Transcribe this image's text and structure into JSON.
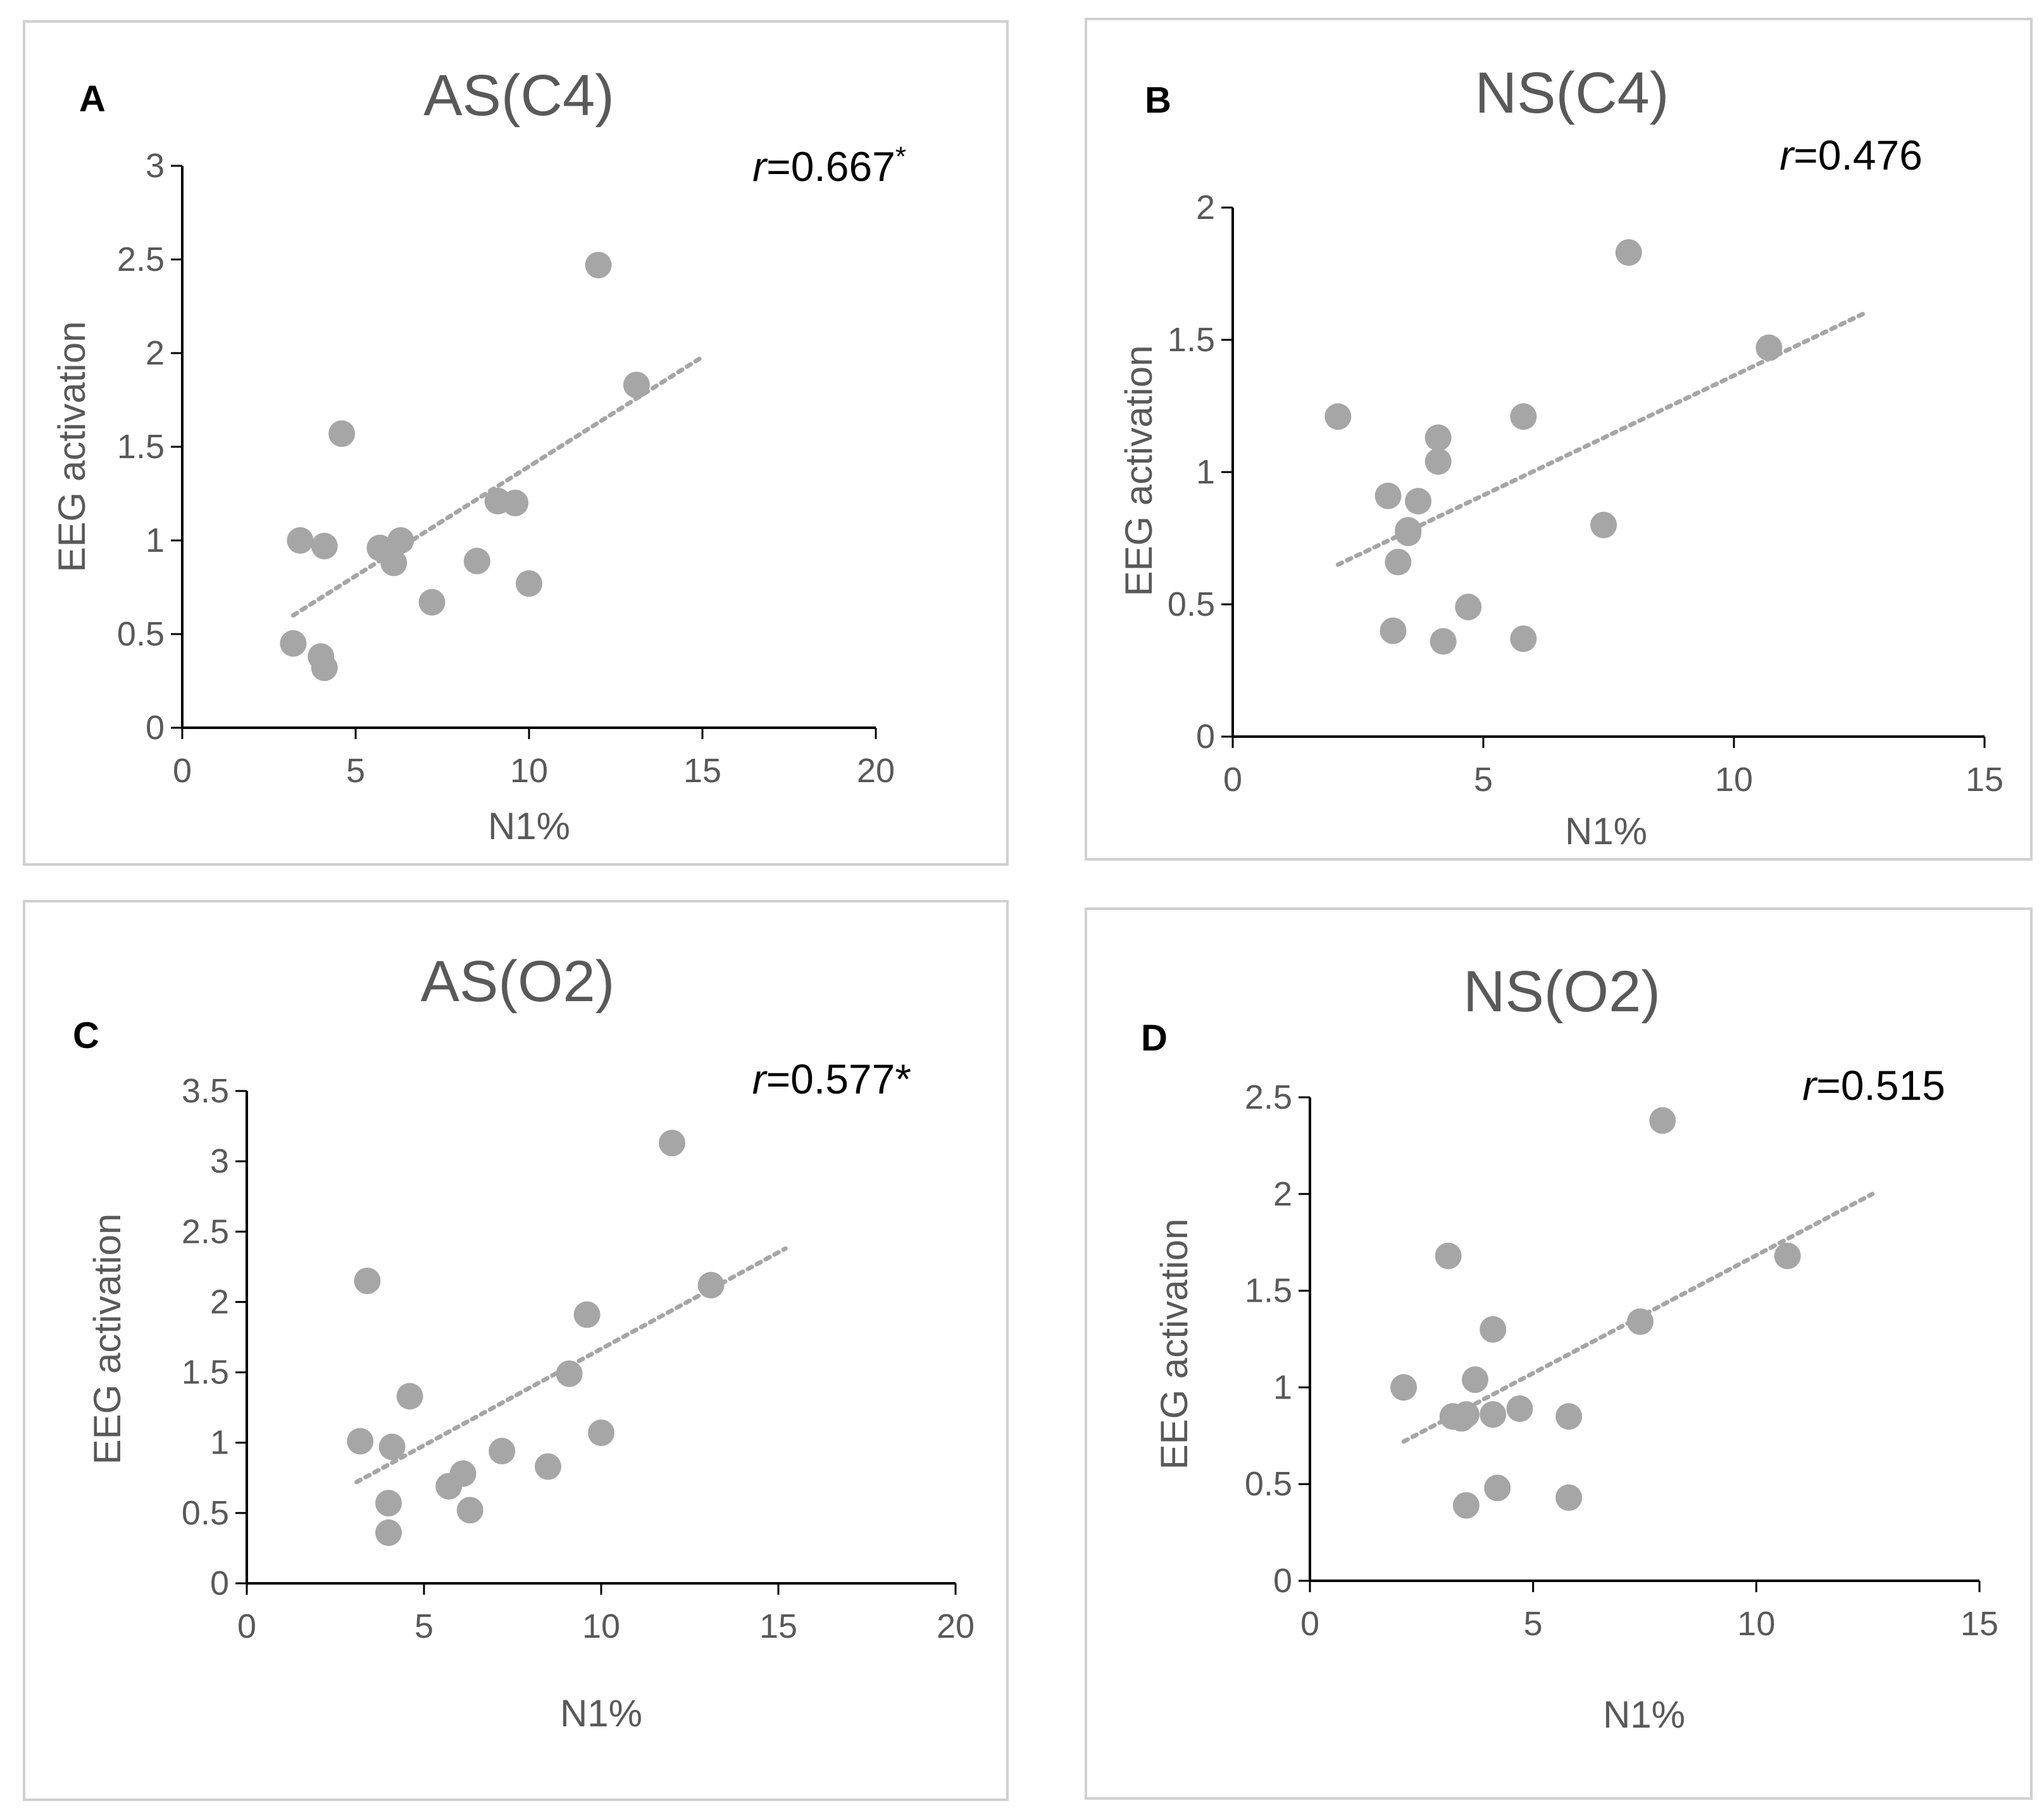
{
  "chart_data": [
    {
      "type": "scatter",
      "panel_label": "A",
      "title": "AS(C4)",
      "xlabel": "N1%",
      "ylabel": "EEG activation",
      "xlim": [
        0,
        20
      ],
      "ylim": [
        0,
        3
      ],
      "xticks": [
        0,
        5,
        10,
        15,
        20
      ],
      "yticks": [
        0,
        0.5,
        1,
        1.5,
        2,
        2.5,
        3
      ],
      "stat_r": "r",
      "stat_value": "=0.667",
      "stat_star": "*",
      "trendline": {
        "style": "dotted",
        "x": [
          3.2,
          15
        ],
        "y": [
          0.6,
          1.98
        ]
      },
      "points": [
        {
          "x": 3.2,
          "y": 0.45
        },
        {
          "x": 3.4,
          "y": 1.0
        },
        {
          "x": 4.0,
          "y": 0.38
        },
        {
          "x": 4.1,
          "y": 0.32
        },
        {
          "x": 4.1,
          "y": 0.97
        },
        {
          "x": 4.6,
          "y": 1.57
        },
        {
          "x": 5.7,
          "y": 0.96
        },
        {
          "x": 6.1,
          "y": 0.88
        },
        {
          "x": 6.3,
          "y": 1.0
        },
        {
          "x": 7.2,
          "y": 0.67
        },
        {
          "x": 8.5,
          "y": 0.89
        },
        {
          "x": 9.1,
          "y": 1.21
        },
        {
          "x": 9.6,
          "y": 1.2
        },
        {
          "x": 10.0,
          "y": 0.77
        },
        {
          "x": 12.0,
          "y": 2.47
        },
        {
          "x": 13.1,
          "y": 1.83
        }
      ],
      "color": "#a6a6a6"
    },
    {
      "type": "scatter",
      "panel_label": "B",
      "title": "NS(C4)",
      "xlabel": "N1%",
      "ylabel": "EEG activation",
      "xlim": [
        0,
        15
      ],
      "ylim": [
        0,
        2
      ],
      "xticks": [
        0,
        5,
        10,
        15
      ],
      "yticks": [
        0,
        0.5,
        1,
        1.5,
        2
      ],
      "stat_r": "r",
      "stat_value": "=0.476",
      "stat_star": "",
      "trendline": {
        "style": "dotted",
        "x": [
          2.1,
          12.6
        ],
        "y": [
          0.65,
          1.6
        ]
      },
      "points": [
        {
          "x": 2.1,
          "y": 1.21
        },
        {
          "x": 3.1,
          "y": 0.91
        },
        {
          "x": 3.2,
          "y": 0.4
        },
        {
          "x": 3.3,
          "y": 0.66
        },
        {
          "x": 3.5,
          "y": 0.78
        },
        {
          "x": 3.5,
          "y": 0.77
        },
        {
          "x": 3.7,
          "y": 0.89
        },
        {
          "x": 4.1,
          "y": 1.13
        },
        {
          "x": 4.1,
          "y": 1.04
        },
        {
          "x": 4.2,
          "y": 0.36
        },
        {
          "x": 4.7,
          "y": 0.49
        },
        {
          "x": 5.8,
          "y": 1.21
        },
        {
          "x": 5.8,
          "y": 0.37
        },
        {
          "x": 7.4,
          "y": 0.8
        },
        {
          "x": 7.9,
          "y": 1.83
        },
        {
          "x": 10.7,
          "y": 1.47
        }
      ],
      "color": "#a6a6a6"
    },
    {
      "type": "scatter",
      "panel_label": "C",
      "title": "AS(O2)",
      "xlabel": "N1%",
      "ylabel": "EEG activation",
      "xlim": [
        0,
        20
      ],
      "ylim": [
        0,
        3.5
      ],
      "xticks": [
        0,
        5,
        10,
        15,
        20
      ],
      "yticks": [
        0,
        0.5,
        1,
        1.5,
        2,
        2.5,
        3,
        3.5
      ],
      "stat_r": "r",
      "stat_value": "=0.577*",
      "stat_star": "",
      "trendline": {
        "style": "dotted",
        "x": [
          3.1,
          15.2
        ],
        "y": [
          0.72,
          2.38
        ]
      },
      "points": [
        {
          "x": 3.2,
          "y": 1.01
        },
        {
          "x": 3.4,
          "y": 2.15
        },
        {
          "x": 4.0,
          "y": 0.57
        },
        {
          "x": 4.0,
          "y": 0.36
        },
        {
          "x": 4.1,
          "y": 0.97
        },
        {
          "x": 4.6,
          "y": 1.33
        },
        {
          "x": 5.7,
          "y": 0.69
        },
        {
          "x": 6.1,
          "y": 0.78
        },
        {
          "x": 6.3,
          "y": 0.52
        },
        {
          "x": 7.2,
          "y": 0.94
        },
        {
          "x": 8.5,
          "y": 0.83
        },
        {
          "x": 9.1,
          "y": 1.49
        },
        {
          "x": 9.6,
          "y": 1.91
        },
        {
          "x": 10.0,
          "y": 1.07
        },
        {
          "x": 12.0,
          "y": 3.13
        },
        {
          "x": 13.1,
          "y": 2.12
        }
      ],
      "color": "#a6a6a6"
    },
    {
      "type": "scatter",
      "panel_label": "D",
      "title": "NS(O2)",
      "xlabel": "N1%",
      "ylabel": "EEG activation",
      "xlim": [
        0,
        15
      ],
      "ylim": [
        0,
        2.5
      ],
      "xticks": [
        0,
        5,
        10,
        15
      ],
      "yticks": [
        0,
        0.5,
        1,
        1.5,
        2,
        2.5
      ],
      "stat_r": "r",
      "stat_value": "=0.515",
      "stat_star": "",
      "trendline": {
        "style": "dotted",
        "x": [
          2.1,
          12.6
        ],
        "y": [
          0.72,
          2.0
        ]
      },
      "points": [
        {
          "x": 2.1,
          "y": 1.0
        },
        {
          "x": 3.1,
          "y": 1.68
        },
        {
          "x": 3.2,
          "y": 0.85
        },
        {
          "x": 3.4,
          "y": 0.84
        },
        {
          "x": 3.5,
          "y": 0.39
        },
        {
          "x": 3.5,
          "y": 0.86
        },
        {
          "x": 3.7,
          "y": 1.04
        },
        {
          "x": 4.1,
          "y": 1.3
        },
        {
          "x": 4.1,
          "y": 0.86
        },
        {
          "x": 4.2,
          "y": 0.48
        },
        {
          "x": 4.7,
          "y": 0.89
        },
        {
          "x": 5.8,
          "y": 0.85
        },
        {
          "x": 5.8,
          "y": 0.43
        },
        {
          "x": 7.4,
          "y": 1.34
        },
        {
          "x": 7.9,
          "y": 2.38
        },
        {
          "x": 10.7,
          "y": 1.68
        }
      ],
      "color": "#a6a6a6"
    }
  ]
}
